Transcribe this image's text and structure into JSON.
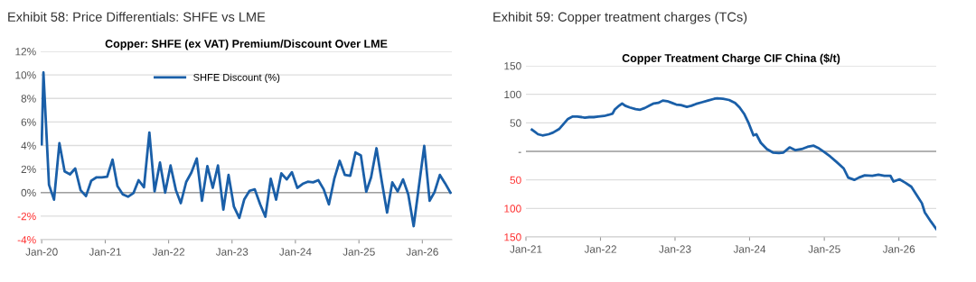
{
  "chart_data": [
    {
      "type": "line",
      "title": "Exhibit 58: Price Differentials: SHFE vs LME",
      "subtitle": "Copper: SHFE (ex VAT) Premium/Discount Over LME",
      "x": [
        "2020-01-01",
        "2020-01-11",
        "2020-02-12",
        "2020-03-12",
        "2020-04-12",
        "2020-05-12",
        "2020-06-12",
        "2020-07-12",
        "2020-08-12",
        "2020-09-12",
        "2020-10-12",
        "2020-11-12",
        "2020-12-12",
        "2021-01-12",
        "2021-02-12",
        "2021-03-12",
        "2021-04-12",
        "2021-05-12",
        "2021-06-12",
        "2021-07-12",
        "2021-08-12",
        "2021-09-12",
        "2021-10-12",
        "2021-11-12",
        "2021-12-12",
        "2022-01-12",
        "2022-02-12",
        "2022-03-12",
        "2022-04-12",
        "2022-05-12",
        "2022-06-12",
        "2022-07-12",
        "2022-08-12",
        "2022-09-12",
        "2022-10-12",
        "2022-11-12",
        "2022-12-12",
        "2023-01-12",
        "2023-02-12",
        "2023-03-12",
        "2023-04-12",
        "2023-05-12",
        "2023-06-12",
        "2023-07-12",
        "2023-08-12",
        "2023-09-12",
        "2023-10-12",
        "2023-11-12",
        "2023-12-12",
        "2024-01-12",
        "2024-02-12",
        "2024-03-12",
        "2024-04-12",
        "2024-05-12",
        "2024-06-12",
        "2024-07-12",
        "2024-08-12",
        "2024-09-12",
        "2024-10-12",
        "2024-11-12",
        "2024-12-12",
        "2025-01-12",
        "2025-02-12",
        "2025-03-12",
        "2025-04-12",
        "2025-05-12",
        "2025-06-12",
        "2025-07-12",
        "2025-08-12",
        "2025-09-12",
        "2025-10-12",
        "2025-11-12",
        "2025-12-12",
        "2026-01-12",
        "2026-02-12",
        "2026-03-12",
        "2026-04-12",
        "2026-05-12",
        "2026-06-12"
      ],
      "series": [
        {
          "name": "SHFE Discount (%)",
          "color": "#1a5fa8",
          "values": [
            4.1,
            10.2,
            0.66,
            -0.6,
            4.2,
            1.8,
            1.55,
            2.05,
            0.2,
            -0.3,
            1.0,
            1.3,
            1.3,
            1.35,
            2.8,
            0.55,
            -0.15,
            -0.35,
            -0.05,
            1.05,
            0.45,
            5.1,
            0.1,
            2.55,
            0.0,
            2.3,
            0.2,
            -0.9,
            0.9,
            1.7,
            2.9,
            -0.7,
            2.25,
            0.4,
            2.3,
            -1.45,
            1.5,
            -1.2,
            -2.15,
            -0.6,
            0.15,
            0.28,
            -1.0,
            -2.05,
            1.17,
            -0.6,
            1.63,
            1.12,
            1.73,
            0.4,
            0.74,
            0.92,
            0.87,
            1.05,
            0.28,
            -1.0,
            1.17,
            2.7,
            1.5,
            1.43,
            3.41,
            3.16,
            0.08,
            1.3,
            3.77,
            1.0,
            -1.7,
            0.87,
            0.1,
            1.12,
            -0.15,
            -2.85,
            0.5,
            3.97,
            -0.69,
            0.03,
            1.5,
            0.79,
            0.0
          ]
        }
      ],
      "xlim": [
        "2019-12-26",
        "2026-06-20"
      ],
      "xticks": [
        {
          "value": "2020-01-01",
          "label": "Jan-20"
        },
        {
          "value": "2021-01-01",
          "label": "Jan-21"
        },
        {
          "value": "2022-01-01",
          "label": "Jan-22"
        },
        {
          "value": "2023-01-01",
          "label": "Jan-23"
        },
        {
          "value": "2024-01-01",
          "label": "Jan-24"
        },
        {
          "value": "2025-01-01",
          "label": "Jan-25"
        },
        {
          "value": "2026-01-01",
          "label": "Jan-26"
        }
      ],
      "ylim": [
        -4,
        12
      ],
      "yticks": [
        {
          "value": -4,
          "label": "-4%"
        },
        {
          "value": -2,
          "label": "-2%"
        },
        {
          "value": 0,
          "label": "0%"
        },
        {
          "value": 2,
          "label": "2%"
        },
        {
          "value": 4,
          "label": "4%"
        },
        {
          "value": 6,
          "label": "6%"
        },
        {
          "value": 8,
          "label": "8%"
        },
        {
          "value": 10,
          "label": "10%"
        },
        {
          "value": 12,
          "label": "12%"
        }
      ],
      "ref_lines": [
        {
          "axis": "y",
          "value": 0,
          "color": "#a0a0a0"
        }
      ],
      "grid": "y",
      "legend": "top",
      "marker": "none",
      "line_style": "solid"
    },
    {
      "type": "line",
      "title": "Exhibit 59: Copper treatment charges (TCs)",
      "subtitle": "Copper Treatment Charge CIF China ($/t)",
      "x": [
        "2021-01-30",
        "2021-02-14",
        "2021-03-01",
        "2021-03-23",
        "2021-04-22",
        "2021-05-14",
        "2021-06-12",
        "2021-07-04",
        "2021-07-26",
        "2021-08-18",
        "2021-09-09",
        "2021-10-01",
        "2021-10-16",
        "2021-11-07",
        "2021-11-29",
        "2021-12-21",
        "2022-01-19",
        "2022-02-10",
        "2022-03-01",
        "2022-03-11",
        "2022-04-02",
        "2022-04-17",
        "2022-05-02",
        "2022-05-24",
        "2022-06-22",
        "2022-07-14",
        "2022-08-06",
        "2022-08-28",
        "2022-09-19",
        "2022-10-11",
        "2022-11-02",
        "2022-11-24",
        "2022-12-16",
        "2023-01-07",
        "2023-01-30",
        "2023-02-28",
        "2023-03-22",
        "2023-04-13",
        "2023-05-13",
        "2023-06-11",
        "2023-07-11",
        "2023-07-26",
        "2023-08-24",
        "2023-09-23",
        "2023-10-22",
        "2023-11-13",
        "2023-12-05",
        "2023-12-28",
        "2024-01-20",
        "2024-02-03",
        "2024-02-25",
        "2024-03-26",
        "2024-04-24",
        "2024-05-24",
        "2024-06-15",
        "2024-07-15",
        "2024-08-13",
        "2024-09-12",
        "2024-10-11",
        "2024-11-10",
        "2024-12-02",
        "2024-12-31",
        "2025-01-30",
        "2025-02-28",
        "2025-04-06",
        "2025-04-28",
        "2025-05-28",
        "2025-06-19",
        "2025-07-18",
        "2025-08-24",
        "2025-09-23",
        "2025-10-22",
        "2025-11-21",
        "2025-12-06",
        "2026-01-04",
        "2026-02-02",
        "2026-03-03",
        "2026-04-01",
        "2026-04-24",
        "2026-05-08",
        "2026-06-07",
        "2026-07-03"
      ],
      "series": [
        {
          "color": "#1a5fa8",
          "values": [
            38,
            34,
            30,
            28,
            30,
            33,
            39,
            48,
            57,
            61,
            61,
            60,
            59,
            60,
            60,
            61,
            62,
            64,
            66,
            73,
            80,
            84,
            80,
            77,
            74,
            73,
            76,
            80,
            84,
            85,
            89,
            88,
            85,
            82,
            81,
            78,
            80,
            83,
            86,
            89,
            92,
            93,
            92,
            90,
            85,
            77,
            66,
            49,
            28,
            30,
            15,
            4,
            -2,
            -3,
            -2,
            7,
            2,
            4,
            8,
            10,
            6,
            -1,
            -9,
            -18,
            -30,
            -46,
            -50,
            -46,
            -42,
            -43,
            -41,
            -43,
            -43,
            -53,
            -49,
            -55,
            -62,
            -78,
            -91,
            -107,
            -123,
            -136
          ]
        }
      ],
      "xlim": [
        "2021-01-01",
        "2026-07-03"
      ],
      "xticks": [
        {
          "value": "2021-01-01",
          "label": "Jan-21"
        },
        {
          "value": "2022-01-01",
          "label": "Jan-22"
        },
        {
          "value": "2023-01-01",
          "label": "Jan-23"
        },
        {
          "value": "2024-01-01",
          "label": "Jan-24"
        },
        {
          "value": "2025-01-01",
          "label": "Jan-25"
        },
        {
          "value": "2026-01-01",
          "label": "Jan-26"
        }
      ],
      "ylim": [
        -150,
        150
      ],
      "yticks": [
        {
          "value": -150,
          "label": "150"
        },
        {
          "value": -100,
          "label": "100"
        },
        {
          "value": -50,
          "label": "50"
        },
        {
          "value": 0,
          "label": "-"
        },
        50,
        100,
        150
      ],
      "ref_lines": [
        {
          "axis": "y",
          "value": 0,
          "color": "#a0a0a0"
        }
      ],
      "grid": "y",
      "legend": false,
      "marker": "none",
      "line_style": "solid"
    }
  ]
}
